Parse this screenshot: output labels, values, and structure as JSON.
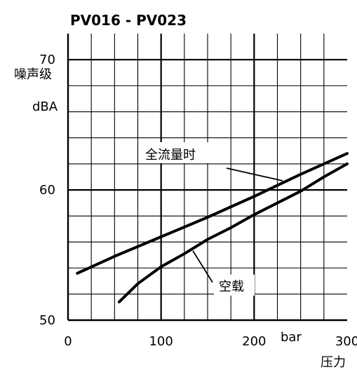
{
  "chart_data": {
    "type": "line",
    "title": "PV016 - PV023",
    "xlabel": "压力",
    "xunit": "bar",
    "ylabel": "噪声级",
    "yunit": "dBA",
    "xlim": [
      0,
      300
    ],
    "ylim": [
      50,
      72
    ],
    "x_tick_labels": [
      "0",
      "100",
      "200",
      "300"
    ],
    "y_tick_labels": [
      "50",
      "60",
      "70"
    ],
    "grid": true,
    "series": [
      {
        "name": "全流量时",
        "x": [
          10,
          50,
          100,
          150,
          200,
          250,
          300
        ],
        "y": [
          53.6,
          54.9,
          56.4,
          57.9,
          59.5,
          61.2,
          62.8
        ]
      },
      {
        "name": "空载",
        "x": [
          55,
          75,
          100,
          125,
          150,
          175,
          200,
          225,
          250,
          275,
          300
        ],
        "y": [
          51.4,
          52.8,
          54.1,
          55.1,
          56.2,
          57.1,
          58.1,
          59.0,
          59.9,
          61.0,
          62.0
        ]
      }
    ],
    "annotations": [
      {
        "text": "全流量时",
        "target": "全流量时"
      },
      {
        "text": "空载",
        "target": "空载"
      }
    ]
  }
}
